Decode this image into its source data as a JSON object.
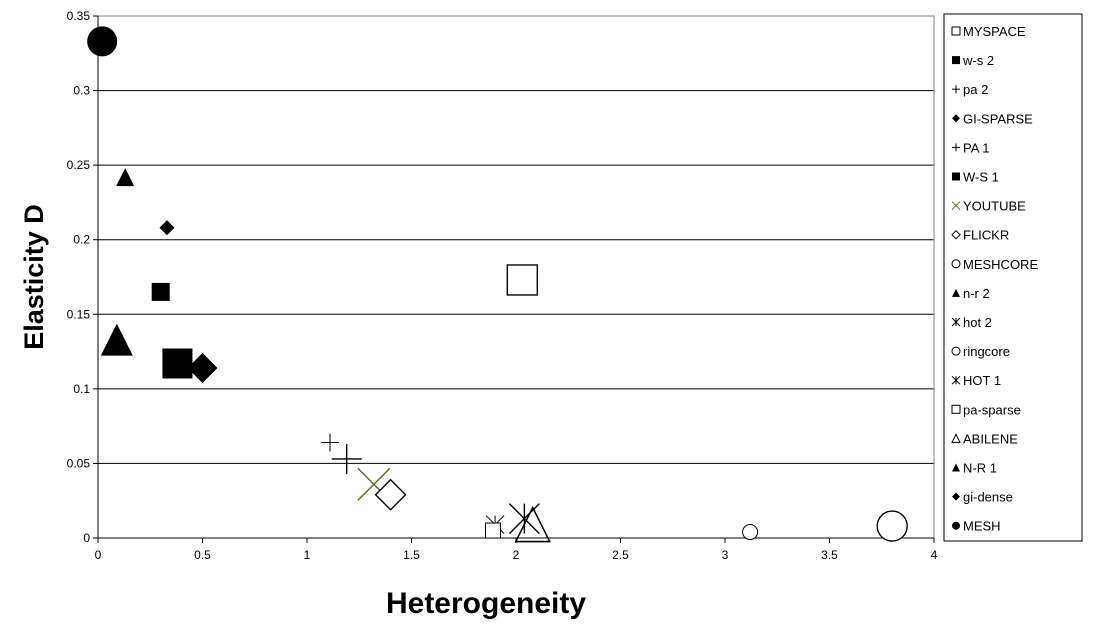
{
  "chart_data": {
    "type": "scatter",
    "xlabel": "Heterogeneity",
    "ylabel": "Elasticity D",
    "xlim": [
      0,
      4
    ],
    "ylim": [
      0,
      0.35
    ],
    "xticks": [
      "0",
      "0.5",
      "1",
      "1.5",
      "2",
      "2.5",
      "3",
      "3.5",
      "4"
    ],
    "yticks": [
      "0",
      "0.05",
      "0.1",
      "0.15",
      "0.2",
      "0.25",
      "0.3",
      "0.35"
    ],
    "grid": "horizontal major gridlines",
    "legend_position": "right",
    "series": [
      {
        "name": "MYSPACE",
        "marker": "square-open",
        "size": "large",
        "color": "#000000",
        "points": [
          [
            2.03,
            0.173
          ]
        ]
      },
      {
        "name": "w-s 2",
        "marker": "square-filled",
        "size": "small",
        "color": "#000000",
        "points": [
          [
            0.3,
            0.165
          ]
        ]
      },
      {
        "name": "pa 2",
        "marker": "plus",
        "size": "small",
        "color": "#000000",
        "points": [
          [
            1.11,
            0.064
          ]
        ]
      },
      {
        "name": "GI-SPARSE",
        "marker": "diamond-filled",
        "size": "large",
        "color": "#000000",
        "points": [
          [
            0.5,
            0.114
          ]
        ]
      },
      {
        "name": "PA 1",
        "marker": "plus",
        "size": "large",
        "color": "#000000",
        "points": [
          [
            1.19,
            0.053
          ]
        ]
      },
      {
        "name": "W-S 1",
        "marker": "square-filled",
        "size": "large",
        "color": "#000000",
        "points": [
          [
            0.38,
            0.117
          ]
        ]
      },
      {
        "name": "YOUTUBE",
        "marker": "x",
        "size": "large",
        "color": "#6b6b3a",
        "points": [
          [
            1.32,
            0.036
          ]
        ]
      },
      {
        "name": "FLICKR",
        "marker": "diamond-open",
        "size": "large",
        "color": "#000000",
        "points": [
          [
            1.4,
            0.029
          ]
        ]
      },
      {
        "name": "MESHCORE",
        "marker": "circle-open",
        "size": "small",
        "color": "#000000",
        "points": [
          [
            3.12,
            0.004
          ]
        ]
      },
      {
        "name": "n-r 2",
        "marker": "triangle-filled",
        "size": "small",
        "color": "#000000",
        "points": [
          [
            0.13,
            0.242
          ]
        ]
      },
      {
        "name": "hot 2",
        "marker": "asterisk",
        "size": "small",
        "color": "#000000",
        "points": [
          [
            1.9,
            0.009
          ]
        ]
      },
      {
        "name": "ringcore",
        "marker": "circle-open",
        "size": "large",
        "color": "#000000",
        "points": [
          [
            3.8,
            0.008
          ]
        ]
      },
      {
        "name": "HOT 1",
        "marker": "asterisk",
        "size": "large",
        "color": "#000000",
        "points": [
          [
            2.04,
            0.013
          ]
        ]
      },
      {
        "name": "pa-sparse",
        "marker": "square-open",
        "size": "small",
        "color": "#000000",
        "points": [
          [
            1.89,
            0.005
          ]
        ]
      },
      {
        "name": "ABILENE",
        "marker": "triangle-open",
        "size": "large",
        "color": "#000000",
        "points": [
          [
            2.08,
            0.009
          ]
        ]
      },
      {
        "name": "N-R 1",
        "marker": "triangle-filled",
        "size": "large",
        "color": "#000000",
        "points": [
          [
            0.09,
            0.133
          ]
        ]
      },
      {
        "name": "gi-dense",
        "marker": "diamond-filled",
        "size": "small",
        "color": "#000000",
        "points": [
          [
            0.33,
            0.208
          ]
        ]
      },
      {
        "name": "MESH",
        "marker": "circle-filled",
        "size": "large",
        "color": "#000000",
        "points": [
          [
            0.02,
            0.333
          ]
        ]
      }
    ]
  }
}
